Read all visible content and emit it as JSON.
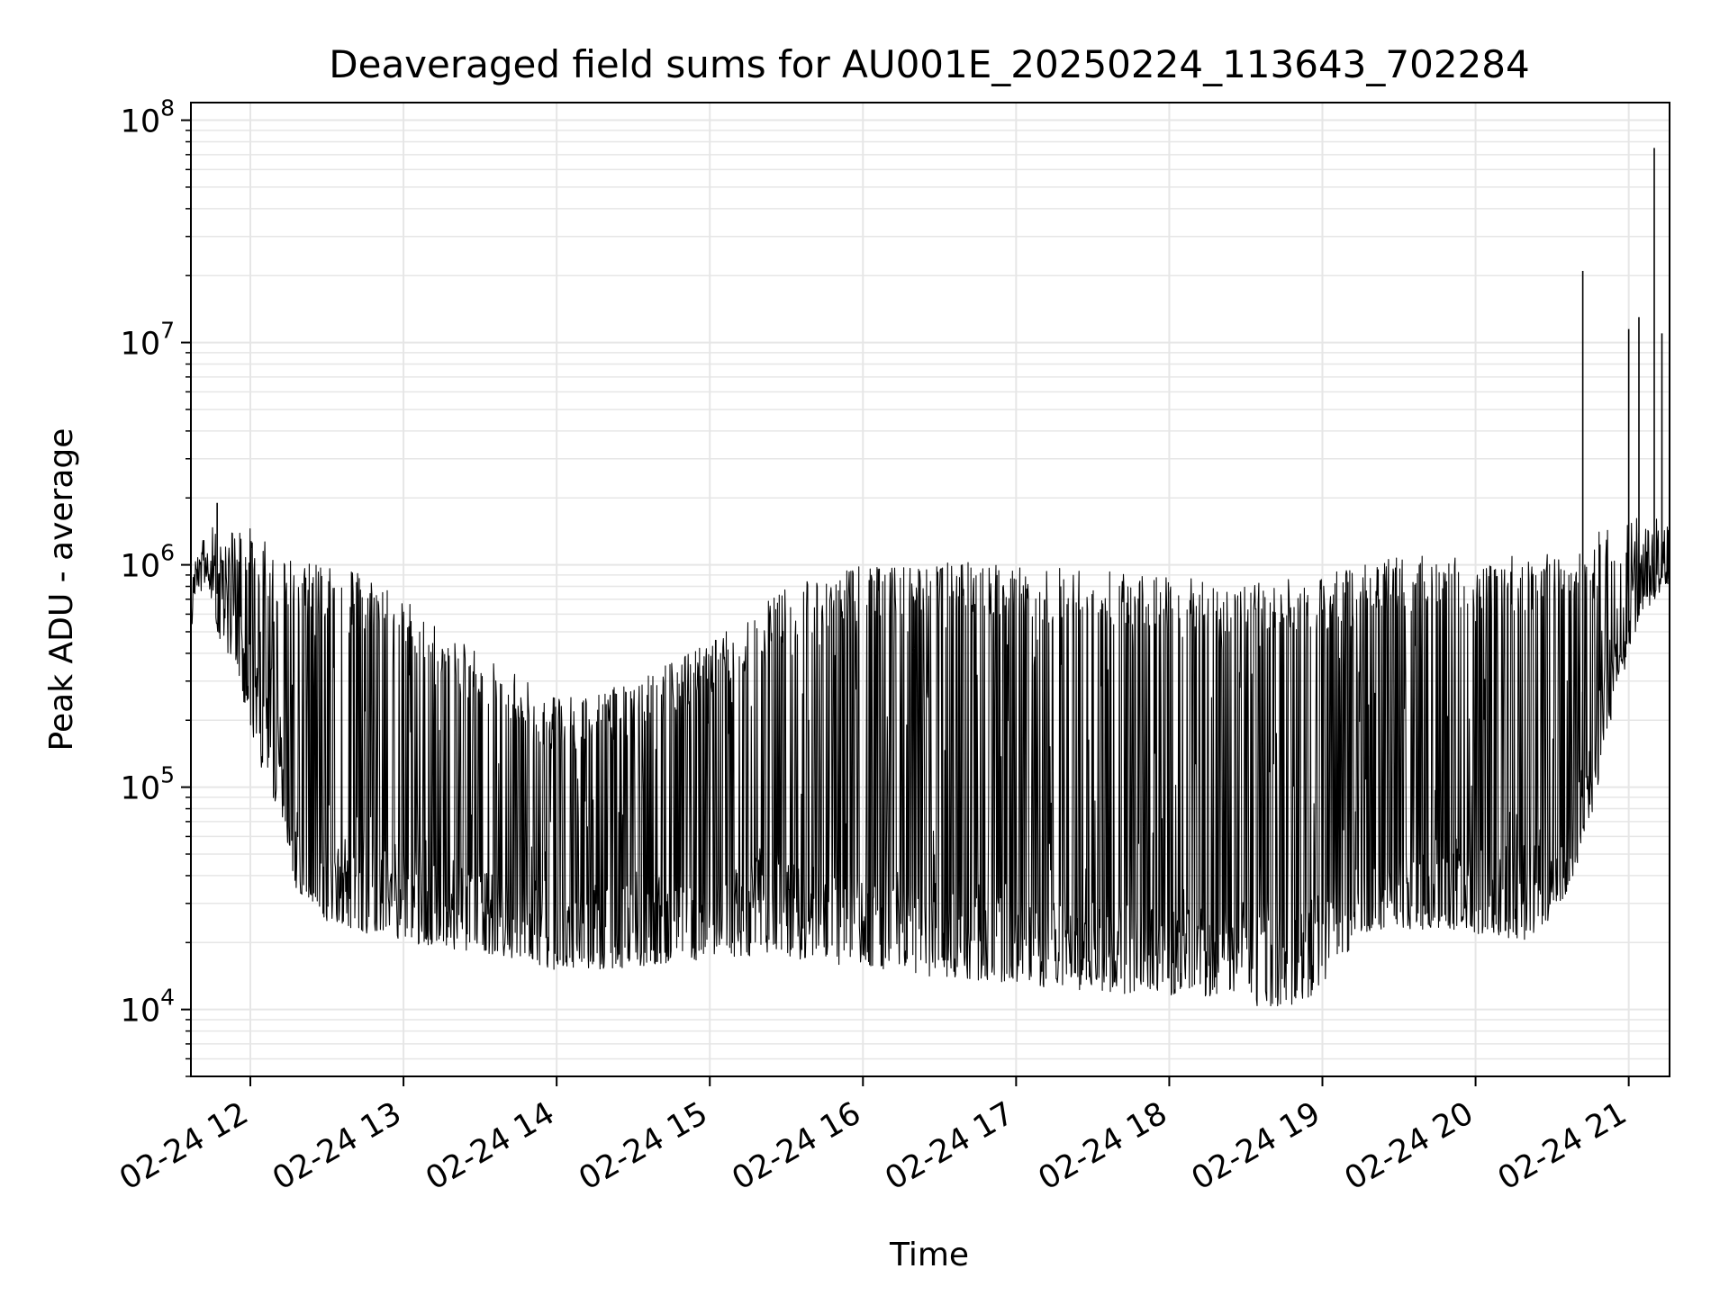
{
  "chart_data": {
    "type": "line",
    "title": "Deaveraged field sums for AU001E_20250224_113643_702284",
    "xlabel": "Time",
    "ylabel": "Peak ADU - average",
    "yscale": "log",
    "grid": true,
    "line_color": "#000000",
    "grid_color": "#e6e6e6",
    "xlim": [
      "2025-02-24T11:36:43",
      "2025-02-24T21:16:00"
    ],
    "ylim": [
      5000,
      120000000
    ],
    "x_ticks": [
      {
        "value": "2025-02-24T12:00:00",
        "label": "02-24 12"
      },
      {
        "value": "2025-02-24T13:00:00",
        "label": "02-24 13"
      },
      {
        "value": "2025-02-24T14:00:00",
        "label": "02-24 14"
      },
      {
        "value": "2025-02-24T15:00:00",
        "label": "02-24 15"
      },
      {
        "value": "2025-02-24T16:00:00",
        "label": "02-24 16"
      },
      {
        "value": "2025-02-24T17:00:00",
        "label": "02-24 17"
      },
      {
        "value": "2025-02-24T18:00:00",
        "label": "02-24 18"
      },
      {
        "value": "2025-02-24T19:00:00",
        "label": "02-24 19"
      },
      {
        "value": "2025-02-24T20:00:00",
        "label": "02-24 20"
      },
      {
        "value": "2025-02-24T21:00:00",
        "label": "02-24 21"
      }
    ],
    "y_ticks": [
      {
        "value": 10000,
        "base": "10",
        "exp": "4"
      },
      {
        "value": 100000,
        "base": "10",
        "exp": "5"
      },
      {
        "value": 1000000,
        "base": "10",
        "exp": "6"
      },
      {
        "value": 10000000,
        "base": "10",
        "exp": "7"
      },
      {
        "value": 100000000,
        "base": "10",
        "exp": "8"
      }
    ],
    "series": [
      {
        "envelope": [
          {
            "t": "2025-02-24T11:36:43",
            "high": 900000,
            "low": 800000
          },
          {
            "t": "2025-02-24T11:42:00",
            "high": 1400000,
            "low": 1000000
          },
          {
            "t": "2025-02-24T11:48:00",
            "high": 1600000,
            "low": 450000
          },
          {
            "t": "2025-02-24T11:54:00",
            "high": 1500000,
            "low": 350000
          },
          {
            "t": "2025-02-24T12:00:00",
            "high": 1500000,
            "low": 180000
          },
          {
            "t": "2025-02-24T12:06:00",
            "high": 1300000,
            "low": 100000
          },
          {
            "t": "2025-02-24T12:12:00",
            "high": 1100000,
            "low": 70000
          },
          {
            "t": "2025-02-24T12:18:00",
            "high": 1050000,
            "low": 35000
          },
          {
            "t": "2025-02-24T12:30:00",
            "high": 1000000,
            "low": 25000
          },
          {
            "t": "2025-02-24T12:45:00",
            "high": 900000,
            "low": 22000
          },
          {
            "t": "2025-02-24T13:00:00",
            "high": 700000,
            "low": 20000
          },
          {
            "t": "2025-02-24T13:30:00",
            "high": 400000,
            "low": 18000
          },
          {
            "t": "2025-02-24T14:00:00",
            "high": 250000,
            "low": 15000
          },
          {
            "t": "2025-02-24T14:30:00",
            "high": 300000,
            "low": 15000
          },
          {
            "t": "2025-02-24T15:00:00",
            "high": 450000,
            "low": 17000
          },
          {
            "t": "2025-02-24T15:30:00",
            "high": 800000,
            "low": 17000
          },
          {
            "t": "2025-02-24T16:00:00",
            "high": 1000000,
            "low": 15000
          },
          {
            "t": "2025-02-24T16:30:00",
            "high": 1050000,
            "low": 14000
          },
          {
            "t": "2025-02-24T17:00:00",
            "high": 1000000,
            "low": 13000
          },
          {
            "t": "2025-02-24T17:30:00",
            "high": 950000,
            "low": 12000
          },
          {
            "t": "2025-02-24T18:00:00",
            "high": 900000,
            "low": 11500
          },
          {
            "t": "2025-02-24T18:30:00",
            "high": 850000,
            "low": 10500
          },
          {
            "t": "2025-02-24T18:45:00",
            "high": 900000,
            "low": 9500
          },
          {
            "t": "2025-02-24T19:00:00",
            "high": 900000,
            "low": 12000
          },
          {
            "t": "2025-02-24T19:15:00",
            "high": 1000000,
            "low": 22000
          },
          {
            "t": "2025-02-24T19:30:00",
            "high": 1100000,
            "low": 23000
          },
          {
            "t": "2025-02-24T20:00:00",
            "high": 1100000,
            "low": 22000
          },
          {
            "t": "2025-02-24T20:20:00",
            "high": 1100000,
            "low": 20000
          },
          {
            "t": "2025-02-24T20:35:00",
            "high": 1150000,
            "low": 30000
          },
          {
            "t": "2025-02-24T20:45:00",
            "high": 1400000,
            "low": 70000
          },
          {
            "t": "2025-02-24T20:55:00",
            "high": 1700000,
            "low": 250000
          },
          {
            "t": "2025-02-24T21:05:00",
            "high": 1700000,
            "low": 600000
          },
          {
            "t": "2025-02-24T21:16:00",
            "high": 1800000,
            "low": 800000
          }
        ],
        "baseline": [
          {
            "t": "2025-02-24T11:36:43",
            "value": 900000
          },
          {
            "t": "2025-02-24T11:50:00",
            "value": 700000
          },
          {
            "t": "2025-02-24T12:10:00",
            "value": 150000
          },
          {
            "t": "2025-02-24T12:20:00",
            "value": 40000
          },
          {
            "t": "2025-02-24T13:00:00",
            "value": 35000
          },
          {
            "t": "2025-02-24T14:00:00",
            "value": 23000
          },
          {
            "t": "2025-02-24T15:00:00",
            "value": 24000
          },
          {
            "t": "2025-02-24T15:20:00",
            "value": 35000
          },
          {
            "t": "2025-02-24T16:00:00",
            "value": 25000
          },
          {
            "t": "2025-02-24T17:00:00",
            "value": 20000
          },
          {
            "t": "2025-02-24T18:00:00",
            "value": 19000
          },
          {
            "t": "2025-02-24T18:50:00",
            "value": 20000
          },
          {
            "t": "2025-02-24T19:15:00",
            "value": 30000
          },
          {
            "t": "2025-02-24T20:00:00",
            "value": 35000
          },
          {
            "t": "2025-02-24T20:35:00",
            "value": 40000
          },
          {
            "t": "2025-02-24T20:55:00",
            "value": 400000
          },
          {
            "t": "2025-02-24T21:16:00",
            "value": 1000000
          }
        ],
        "spikes": [
          {
            "t": "2025-02-24T11:47:00",
            "value": 1900000
          },
          {
            "t": "2025-02-24T20:42:00",
            "value": 21000000
          },
          {
            "t": "2025-02-24T21:00:00",
            "value": 11500000
          },
          {
            "t": "2025-02-24T21:04:00",
            "value": 13000000
          },
          {
            "t": "2025-02-24T21:10:00",
            "value": 75000000
          },
          {
            "t": "2025-02-24T21:13:00",
            "value": 11000000
          }
        ]
      }
    ]
  }
}
